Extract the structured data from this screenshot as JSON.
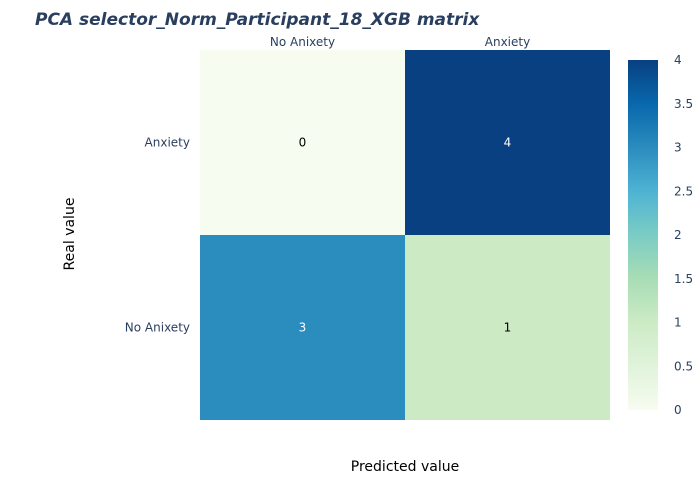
{
  "chart_data": {
    "type": "heatmap",
    "title": "PCA selector_Norm_Participant_18_XGB matrix",
    "xlabel": "Predicted value",
    "ylabel": "Real value",
    "x_categories": [
      "No Anixety",
      "Anxiety"
    ],
    "y_categories": [
      "Anxiety",
      "No Anixety"
    ],
    "z": [
      [
        0,
        4
      ],
      [
        3,
        1
      ]
    ],
    "colorscale": "GnBu",
    "zlim": [
      0,
      4
    ],
    "colorbar_ticks": [
      "0",
      "0.5",
      "1",
      "1.5",
      "2",
      "2.5",
      "3",
      "3.5",
      "4"
    ],
    "x_axis_side": "top",
    "grid": false
  }
}
